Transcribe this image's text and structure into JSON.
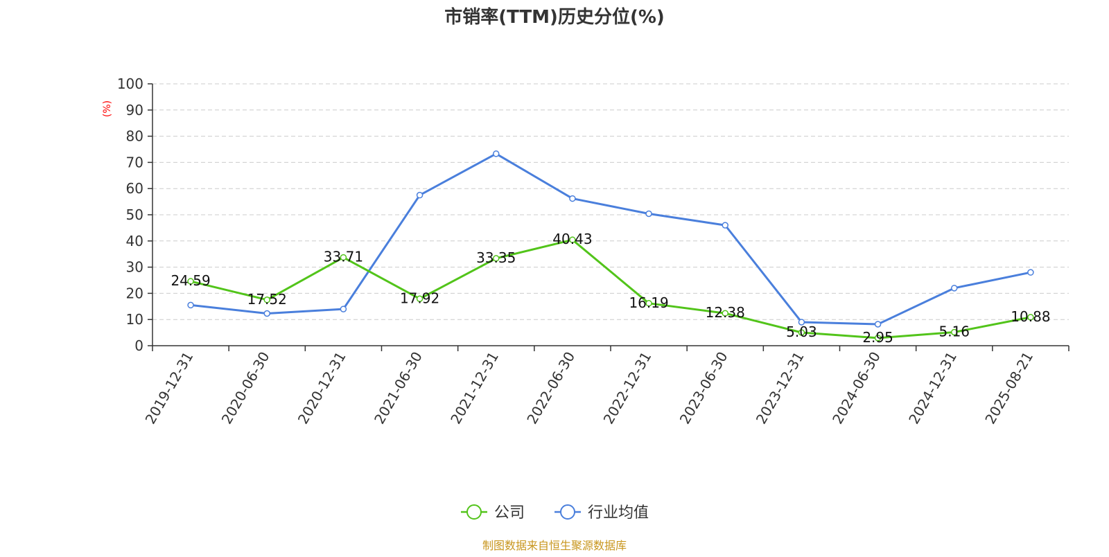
{
  "chart_data": {
    "type": "line",
    "title": "市销率(TTM)历史分位(%)",
    "ylabel": "(%)",
    "xlabel": "",
    "ylim": [
      0,
      100
    ],
    "yticks": [
      0,
      10,
      20,
      30,
      40,
      50,
      60,
      70,
      80,
      90,
      100
    ],
    "grid": true,
    "legend_position": "bottom-center",
    "categories": [
      "2019-12-31",
      "2020-06-30",
      "2020-12-31",
      "2021-06-30",
      "2021-12-31",
      "2022-06-30",
      "2022-12-31",
      "2023-06-30",
      "2023-12-31",
      "2024-06-30",
      "2024-12-31",
      "2025-08-21"
    ],
    "series": [
      {
        "name": "公司",
        "color": "#52c41a",
        "show_labels": true,
        "values": [
          24.59,
          17.52,
          33.71,
          17.92,
          33.35,
          40.43,
          16.19,
          12.38,
          5.03,
          2.95,
          5.16,
          10.88
        ]
      },
      {
        "name": "行业均值",
        "color": "#4a7fdc",
        "show_labels": false,
        "values": [
          15.5,
          12.3,
          14.0,
          57.5,
          73.3,
          56.2,
          50.4,
          46.0,
          9.0,
          8.2,
          22.0,
          28.0
        ]
      }
    ],
    "source": "制图数据来自恒生聚源数据库"
  }
}
